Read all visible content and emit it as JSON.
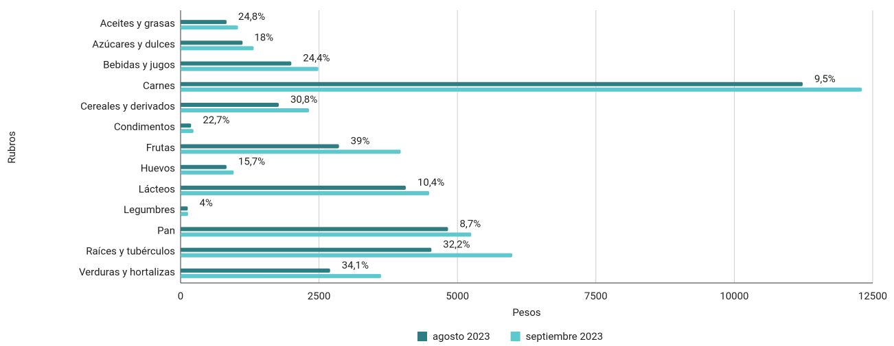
{
  "chart_data": {
    "type": "hbar",
    "x_label": "Pesos",
    "y_label": "Rubros",
    "categories": [
      "Aceites y grasas",
      "Azúcares y dulces",
      "Bebidas y jugos",
      "Carnes",
      "Cereales y derivados",
      "Condimentos",
      "Frutas",
      "Huevos",
      "Lácteos",
      "Legumbres",
      "Pan",
      "Raíces y tubérculos",
      "Verduras y hortalizas"
    ],
    "series": [
      {
        "name": "agosto 2023",
        "color": "#2e7d82",
        "values": [
          830,
          1120,
          2000,
          11235,
          1773,
          190,
          2860,
          830,
          4067,
          130,
          4830,
          4530,
          2700
        ]
      },
      {
        "name": "septiembre 2023",
        "color": "#5ec8cf",
        "values": [
          1036,
          1320,
          2488,
          12302,
          2319,
          233,
          3975,
          960,
          4490,
          135,
          5250,
          5990,
          3620
        ]
      }
    ],
    "change_labels": [
      "24,8%",
      "18%",
      "24,4%",
      "9,5%",
      "30,8%",
      "22,7%",
      "39%",
      "15,7%",
      "10,4%",
      "4%",
      "8,7%",
      "32,2%",
      "34,1%"
    ],
    "xlim": [
      0,
      12500
    ],
    "xticks": [
      0,
      2500,
      5000,
      7500,
      10000,
      12500
    ],
    "grid": true,
    "legend": "bottom"
  }
}
